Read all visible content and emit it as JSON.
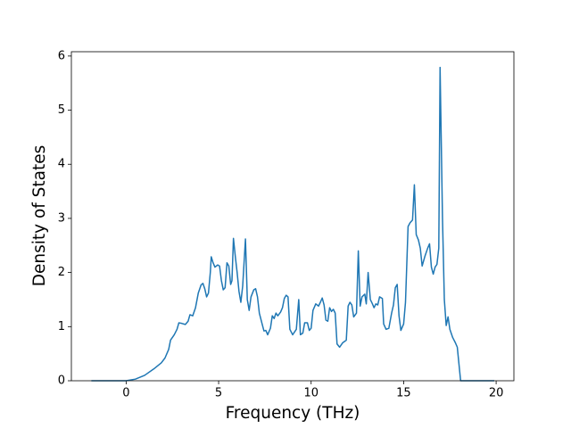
{
  "chart_data": {
    "type": "line",
    "x_label": "Frequency (THz)",
    "y_label": "Density of States",
    "xlim": [
      -2.96,
      20.96
    ],
    "ylim": [
      0,
      6.08
    ],
    "xticks": [
      0,
      5,
      10,
      15,
      20
    ],
    "yticks": [
      0,
      1,
      2,
      3,
      4,
      5,
      6
    ],
    "grid": false,
    "x": [
      -1.88,
      -1.0,
      -0.5,
      0,
      0.5,
      1.0,
      1.5,
      1.9,
      2.1,
      2.3,
      2.4,
      2.6,
      2.75,
      2.85,
      3.0,
      3.2,
      3.35,
      3.45,
      3.6,
      3.75,
      3.9,
      4.05,
      4.15,
      4.25,
      4.35,
      4.45,
      4.55,
      4.6,
      4.7,
      4.8,
      4.95,
      5.05,
      5.15,
      5.25,
      5.35,
      5.45,
      5.55,
      5.65,
      5.72,
      5.8,
      5.9,
      6.0,
      6.1,
      6.2,
      6.3,
      6.45,
      6.55,
      6.65,
      6.75,
      6.9,
      7.0,
      7.1,
      7.2,
      7.35,
      7.45,
      7.55,
      7.65,
      7.8,
      7.9,
      8.0,
      8.1,
      8.2,
      8.35,
      8.45,
      8.55,
      8.65,
      8.75,
      8.85,
      9.0,
      9.2,
      9.33,
      9.42,
      9.55,
      9.65,
      9.8,
      9.9,
      10.0,
      10.1,
      10.25,
      10.4,
      10.5,
      10.6,
      10.7,
      10.8,
      10.9,
      11.0,
      11.1,
      11.2,
      11.3,
      11.4,
      11.54,
      11.7,
      11.9,
      12.0,
      12.1,
      12.2,
      12.3,
      12.45,
      12.55,
      12.65,
      12.75,
      12.9,
      12.98,
      13.08,
      13.2,
      13.3,
      13.4,
      13.5,
      13.6,
      13.7,
      13.85,
      13.92,
      14.05,
      14.2,
      14.35,
      14.45,
      14.55,
      14.65,
      14.75,
      14.85,
      15.0,
      15.1,
      15.24,
      15.35,
      15.48,
      15.58,
      15.68,
      15.8,
      15.9,
      16.0,
      16.15,
      16.3,
      16.4,
      16.5,
      16.6,
      16.7,
      16.8,
      16.9,
      16.97,
      17.1,
      17.2,
      17.3,
      17.4,
      17.5,
      17.65,
      17.8,
      17.9,
      18.08,
      18.5,
      19.2,
      19.9
    ],
    "series": [
      {
        "name": "DOS",
        "color": "#1f77b4",
        "values": [
          0,
          0,
          0,
          0,
          0.03,
          0.1,
          0.22,
          0.33,
          0.42,
          0.58,
          0.75,
          0.85,
          0.95,
          1.07,
          1.06,
          1.04,
          1.1,
          1.22,
          1.2,
          1.35,
          1.62,
          1.77,
          1.8,
          1.7,
          1.55,
          1.62,
          2.0,
          2.29,
          2.18,
          2.1,
          2.14,
          2.12,
          1.85,
          1.68,
          1.72,
          2.18,
          2.12,
          1.78,
          1.85,
          2.63,
          2.3,
          2.0,
          1.65,
          1.45,
          1.75,
          2.62,
          1.5,
          1.3,
          1.55,
          1.68,
          1.7,
          1.55,
          1.25,
          1.05,
          0.92,
          0.93,
          0.85,
          0.97,
          1.2,
          1.15,
          1.25,
          1.2,
          1.27,
          1.35,
          1.52,
          1.58,
          1.55,
          0.95,
          0.85,
          0.95,
          1.5,
          0.85,
          0.88,
          1.07,
          1.07,
          0.93,
          0.97,
          1.3,
          1.42,
          1.38,
          1.45,
          1.53,
          1.4,
          1.12,
          1.1,
          1.35,
          1.28,
          1.32,
          1.25,
          0.68,
          0.62,
          0.7,
          0.75,
          1.38,
          1.45,
          1.4,
          1.18,
          1.25,
          2.4,
          1.38,
          1.55,
          1.6,
          1.42,
          2.0,
          1.5,
          1.43,
          1.35,
          1.42,
          1.4,
          1.55,
          1.52,
          1.05,
          0.95,
          0.97,
          1.25,
          1.4,
          1.72,
          1.78,
          1.2,
          0.93,
          1.05,
          1.45,
          2.85,
          2.92,
          2.97,
          3.62,
          2.7,
          2.6,
          2.45,
          2.12,
          2.3,
          2.45,
          2.53,
          2.1,
          1.97,
          2.1,
          2.15,
          2.45,
          5.79,
          3.0,
          1.5,
          1.02,
          1.18,
          0.95,
          0.8,
          0.7,
          0.62,
          0,
          0,
          0,
          0
        ]
      }
    ]
  }
}
